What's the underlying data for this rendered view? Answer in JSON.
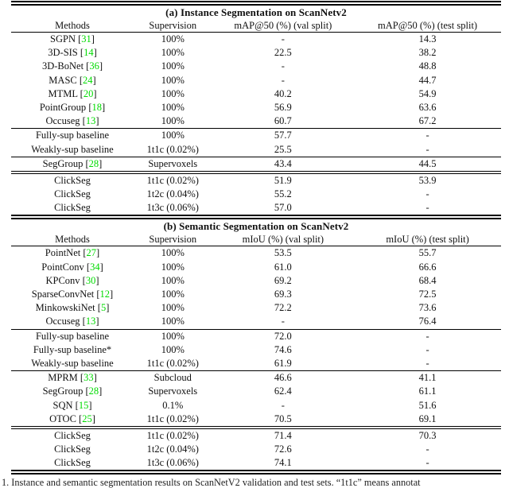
{
  "accent": {
    "citation_color": "#00db00",
    "rule_color": "#000000"
  },
  "caption": "1. Instance and semantic segmentation results on ScanNetV2 validation and test sets. “1t1c” means annotat",
  "tables": [
    {
      "title": "(a) Instance Segmentation on ScanNetv2",
      "columns": [
        "Methods",
        "Supervision",
        "mAP@50 (%) (val split)",
        "mAP@50 (%) (test split)"
      ],
      "groups": [
        {
          "rule_after": "single",
          "rows": [
            {
              "method": "SGPN",
              "cite": "31",
              "supervision": "100%",
              "val": "-",
              "test": "14.3"
            },
            {
              "method": "3D-SIS",
              "cite": "14",
              "supervision": "100%",
              "val": "22.5",
              "test": "38.2"
            },
            {
              "method": "3D-BoNet",
              "cite": "36",
              "supervision": "100%",
              "val": "-",
              "test": "48.8"
            },
            {
              "method": "MASC",
              "cite": "24",
              "supervision": "100%",
              "val": "-",
              "test": "44.7"
            },
            {
              "method": "MTML",
              "cite": "20",
              "supervision": "100%",
              "val": "40.2",
              "test": "54.9"
            },
            {
              "method": "PointGroup",
              "cite": "18",
              "supervision": "100%",
              "val": "56.9",
              "test": "63.6"
            },
            {
              "method": "Occuseg",
              "cite": "13",
              "supervision": "100%",
              "val": "60.7",
              "test": "67.2"
            }
          ]
        },
        {
          "rule_after": "single",
          "rows": [
            {
              "method": "Fully-sup baseline",
              "cite": "",
              "supervision": "100%",
              "val": "57.7",
              "test": "-"
            },
            {
              "method": "Weakly-sup baseline",
              "cite": "",
              "supervision": "1t1c (0.02%)",
              "val": "25.5",
              "test": "-"
            }
          ]
        },
        {
          "rule_after": "double-light",
          "rows": [
            {
              "method": "SegGroup",
              "cite": "28",
              "supervision": "Supervoxels",
              "val": "43.4",
              "test": "44.5"
            }
          ]
        },
        {
          "rule_after": null,
          "rows": [
            {
              "method": "ClickSeg",
              "cite": "",
              "supervision": "1t1c (0.02%)",
              "val": "51.9",
              "test": "53.9"
            },
            {
              "method": "ClickSeg",
              "cite": "",
              "supervision": "1t2c (0.04%)",
              "val": "55.2",
              "test": "-"
            },
            {
              "method": "ClickSeg",
              "cite": "",
              "supervision": "1t3c (0.06%)",
              "val": "57.0",
              "test": "-"
            }
          ]
        }
      ]
    },
    {
      "title": "(b) Semantic Segmentation on ScanNetv2",
      "columns": [
        "Methods",
        "Supervision",
        "mIoU (%) (val split)",
        "mIoU (%) (test split)"
      ],
      "groups": [
        {
          "rule_after": "single",
          "rows": [
            {
              "method": "PointNet",
              "cite": "27",
              "supervision": "100%",
              "val": "53.5",
              "test": "55.7"
            },
            {
              "method": "PointConv",
              "cite": "34",
              "supervision": "100%",
              "val": "61.0",
              "test": "66.6"
            },
            {
              "method": "KPConv",
              "cite": "30",
              "supervision": "100%",
              "val": "69.2",
              "test": "68.4"
            },
            {
              "method": "SparseConvNet",
              "cite": "12",
              "supervision": "100%",
              "val": "69.3",
              "test": "72.5"
            },
            {
              "method": "MinkowskiNet",
              "cite": "5",
              "supervision": "100%",
              "val": "72.2",
              "test": "73.6"
            },
            {
              "method": "Occuseg",
              "cite": "13",
              "supervision": "100%",
              "val": "-",
              "test": "76.4"
            }
          ]
        },
        {
          "rule_after": "single",
          "rows": [
            {
              "method": "Fully-sup baseline",
              "cite": "",
              "supervision": "100%",
              "val": "72.0",
              "test": "-"
            },
            {
              "method": "Fully-sup baseline*",
              "cite": "",
              "supervision": "100%",
              "val": "74.6",
              "test": "-"
            },
            {
              "method": "Weakly-sup baseline",
              "cite": "",
              "supervision": "1t1c (0.02%)",
              "val": "61.9",
              "test": "-"
            }
          ]
        },
        {
          "rule_after": "double-light",
          "rows": [
            {
              "method": "MPRM",
              "cite": "33",
              "supervision": "Subcloud",
              "val": "46.6",
              "test": "41.1"
            },
            {
              "method": "SegGroup",
              "cite": "28",
              "supervision": "Supervoxels",
              "val": "62.4",
              "test": "61.1"
            },
            {
              "method": "SQN",
              "cite": "15",
              "supervision": "0.1%",
              "val": "-",
              "test": "51.6"
            },
            {
              "method": "OTOC",
              "cite": "25",
              "supervision": "1t1c (0.02%)",
              "val": "70.5",
              "test": "69.1"
            }
          ]
        },
        {
          "rule_after": null,
          "rows": [
            {
              "method": "ClickSeg",
              "cite": "",
              "supervision": "1t1c (0.02%)",
              "val": "71.4",
              "test": "70.3"
            },
            {
              "method": "ClickSeg",
              "cite": "",
              "supervision": "1t2c (0.04%)",
              "val": "72.6",
              "test": "-"
            },
            {
              "method": "ClickSeg",
              "cite": "",
              "supervision": "1t3c (0.06%)",
              "val": "74.1",
              "test": "-"
            }
          ]
        }
      ]
    }
  ]
}
